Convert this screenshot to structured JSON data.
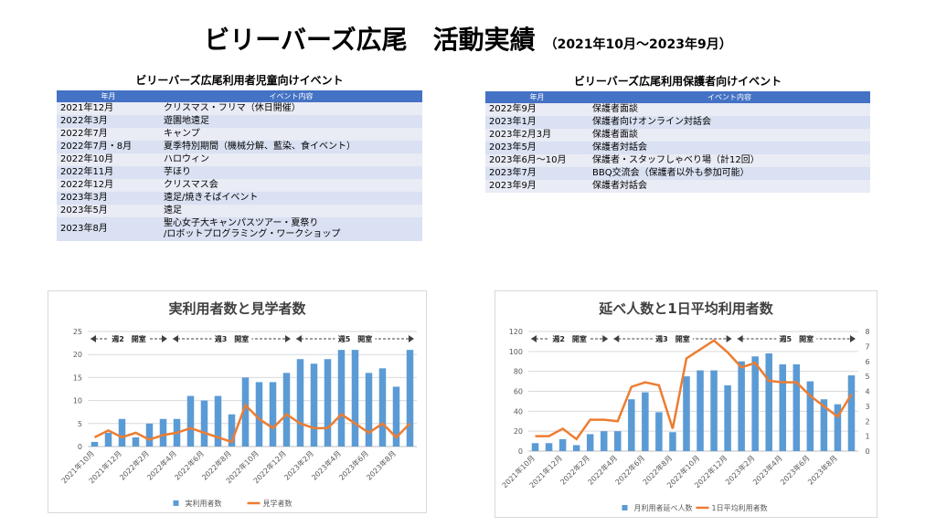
{
  "header": {
    "title": "ビリーバーズ広尾　活動実績",
    "subtitle": "（2021年10月～2023年9月）"
  },
  "tables": [
    {
      "title": "ビリーバーズ広尾利用者児童向けイベント",
      "columns": [
        "年月",
        "イベント内容"
      ],
      "rows": [
        [
          "2021年12月",
          "クリスマス・フリマ（休日開催）"
        ],
        [
          "2022年3月",
          "遊園地遠足"
        ],
        [
          "2022年7月",
          "キャンプ"
        ],
        [
          "2022年7月・8月",
          "夏季特別期間（機械分解、藍染、食イベント）"
        ],
        [
          "2022年10月",
          "ハロウィン"
        ],
        [
          "2022年11月",
          "芋ほり"
        ],
        [
          "2022年12月",
          "クリスマス会"
        ],
        [
          "2023年3月",
          "遠足/焼きそばイベント"
        ],
        [
          "2023年5月",
          "遠足"
        ],
        [
          "2023年8月",
          "聖心女子大キャンパスツアー・夏祭り\n/ロボットプログラミング・ワークショップ"
        ]
      ]
    },
    {
      "title": "ビリーバーズ広尾利用保護者向けイベント",
      "columns": [
        "年月",
        "イベント内容"
      ],
      "rows": [
        [
          "2022年9月",
          "保護者面談"
        ],
        [
          "2023年1月",
          "保護者向けオンライン対話会"
        ],
        [
          "2023年2月3月",
          "保護者面談"
        ],
        [
          "2023年5月",
          "保護者対話会"
        ],
        [
          "2023年6月～10月",
          "保護者・スタッフしゃべり場（計12回）"
        ],
        [
          "2023年7月",
          "BBQ交流会（保護者以外も参加可能）"
        ],
        [
          "2023年9月",
          "保護者対話会"
        ]
      ]
    }
  ],
  "chart_data": [
    {
      "type": "bar-line",
      "title": "実利用者数と見学者数",
      "annotations": [
        "週2　開室",
        "週3　開室",
        "週5　開室"
      ],
      "categories": [
        "2021年10月",
        null,
        "2021年12月",
        null,
        "2022年2月",
        null,
        "2022年4月",
        null,
        "2022年6月",
        null,
        "2022年8月",
        null,
        "2022年10月",
        null,
        "2022年12月",
        null,
        "2023年2月",
        null,
        "2023年4月",
        null,
        "2023年6月",
        null,
        "2023年8月",
        null
      ],
      "series": [
        {
          "name": "実利用者数",
          "color": "#5b9bd5",
          "kind": "bar",
          "values": [
            1,
            3,
            6,
            2,
            5,
            6,
            6,
            11,
            10,
            11,
            7,
            15,
            14,
            14,
            16,
            19,
            18,
            19,
            21,
            21,
            16,
            17,
            13,
            21
          ]
        },
        {
          "name": "見学者数",
          "color": "#ed7d31",
          "kind": "line",
          "values": [
            2,
            3.5,
            2,
            3,
            1.5,
            2.5,
            3,
            4,
            3,
            2,
            1,
            9,
            6,
            4,
            7,
            5,
            4,
            4,
            7,
            5,
            3,
            5,
            2,
            5
          ]
        }
      ],
      "ylim": [
        0,
        25
      ],
      "yticks": [
        0,
        5,
        10,
        15,
        20,
        25
      ],
      "grid": true,
      "legend": "bottom"
    },
    {
      "type": "bar-line",
      "title": "延べ人数と1日平均利用者数",
      "annotations": [
        "週2　開室",
        "週3　開室",
        "週5　開室"
      ],
      "categories": [
        "2021年10月",
        null,
        "2021年12月",
        null,
        "2022年2月",
        null,
        "2022年4月",
        null,
        "2022年6月",
        null,
        "2022年8月",
        null,
        "2022年10月",
        null,
        "2022年12月",
        null,
        "2023年2月",
        null,
        "2023年4月",
        null,
        "2023年6月",
        null,
        "2023年8月",
        null
      ],
      "series": [
        {
          "name": "月利用者延べ人数",
          "color": "#5b9bd5",
          "kind": "bar",
          "values": [
            8,
            8,
            12,
            6,
            17,
            20,
            20,
            52,
            59,
            39,
            19,
            75,
            81,
            81,
            66,
            90,
            95,
            98,
            87,
            87,
            70,
            52,
            47,
            76
          ]
        },
        {
          "name": "1日平均利用者数",
          "color": "#ed7d31",
          "kind": "line",
          "axis": "y2",
          "values": [
            1,
            1,
            1.5,
            0.8,
            2.1,
            2.1,
            2,
            4.3,
            4.6,
            4.4,
            1.5,
            6.2,
            6.8,
            7.4,
            6.6,
            5.6,
            5.9,
            4.7,
            4.6,
            4.6,
            3.7,
            3,
            2.3,
            3.8
          ]
        }
      ],
      "ylim": [
        0,
        120
      ],
      "yticks": [
        0,
        20,
        40,
        60,
        80,
        100,
        120
      ],
      "y2lim": [
        0,
        8
      ],
      "y2ticks": [
        0,
        1,
        2,
        3,
        4,
        5,
        6,
        7,
        8
      ],
      "grid": true,
      "legend": "bottom"
    }
  ]
}
